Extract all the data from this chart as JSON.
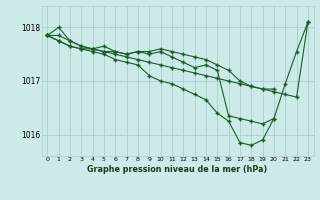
{
  "title": "Graphe pression niveau de la mer (hPa)",
  "background_color": "#cceae7",
  "grid_color": "#aacfcc",
  "line_color": "#1a5c2a",
  "xlim": [
    -0.5,
    23.5
  ],
  "ylim": [
    1015.6,
    1018.4
  ],
  "yticks": [
    1016,
    1017,
    1018
  ],
  "xticks": [
    0,
    1,
    2,
    3,
    4,
    5,
    6,
    7,
    8,
    9,
    10,
    11,
    12,
    13,
    14,
    15,
    16,
    17,
    18,
    19,
    20,
    21,
    22,
    23
  ],
  "series": [
    {
      "x": [
        0,
        1,
        2,
        3,
        4,
        5,
        6,
        7,
        8,
        9,
        10,
        11,
        12,
        13,
        14,
        15,
        16,
        17,
        18,
        19,
        20,
        21,
        22,
        23
      ],
      "y": [
        1017.85,
        1017.85,
        1017.75,
        1017.65,
        1017.6,
        1017.55,
        1017.5,
        1017.45,
        1017.4,
        1017.35,
        1017.3,
        1017.25,
        1017.2,
        1017.15,
        1017.1,
        1017.05,
        1017.0,
        1016.95,
        1016.9,
        1016.85,
        1016.8,
        1016.75,
        1016.7,
        1018.1
      ]
    },
    {
      "x": [
        0,
        1,
        2,
        3,
        4,
        5,
        6,
        7,
        8,
        9,
        10,
        11,
        12,
        13,
        14,
        15,
        16,
        17,
        18,
        19,
        20
      ],
      "y": [
        1017.85,
        1018.0,
        1017.75,
        1017.65,
        1017.6,
        1017.55,
        1017.55,
        1017.5,
        1017.55,
        1017.55,
        1017.6,
        1017.55,
        1017.5,
        1017.45,
        1017.4,
        1017.3,
        1017.2,
        1017.0,
        1016.9,
        1016.85,
        1016.85
      ]
    },
    {
      "x": [
        0,
        1,
        2,
        3,
        4,
        5,
        6,
        7,
        8,
        9,
        10,
        11,
        12,
        13,
        14,
        15,
        16,
        17,
        18,
        19,
        20,
        21,
        22,
        23
      ],
      "y": [
        1017.85,
        1017.75,
        1017.65,
        1017.6,
        1017.6,
        1017.65,
        1017.55,
        1017.5,
        1017.55,
        1017.5,
        1017.55,
        1017.45,
        1017.35,
        1017.25,
        1017.3,
        1017.2,
        1016.35,
        1016.3,
        1016.25,
        1016.2,
        1016.3,
        1016.95,
        1017.55,
        1018.1
      ]
    },
    {
      "x": [
        0,
        1,
        2,
        3,
        4,
        5,
        6,
        7,
        8,
        9,
        10,
        11,
        12,
        13,
        14,
        15,
        16,
        17,
        18,
        19,
        20
      ],
      "y": [
        1017.85,
        1017.75,
        1017.65,
        1017.6,
        1017.55,
        1017.5,
        1017.4,
        1017.35,
        1017.3,
        1017.1,
        1017.0,
        1016.95,
        1016.85,
        1016.75,
        1016.65,
        1016.4,
        1016.25,
        1015.85,
        1015.8,
        1015.9,
        1016.3
      ]
    }
  ]
}
